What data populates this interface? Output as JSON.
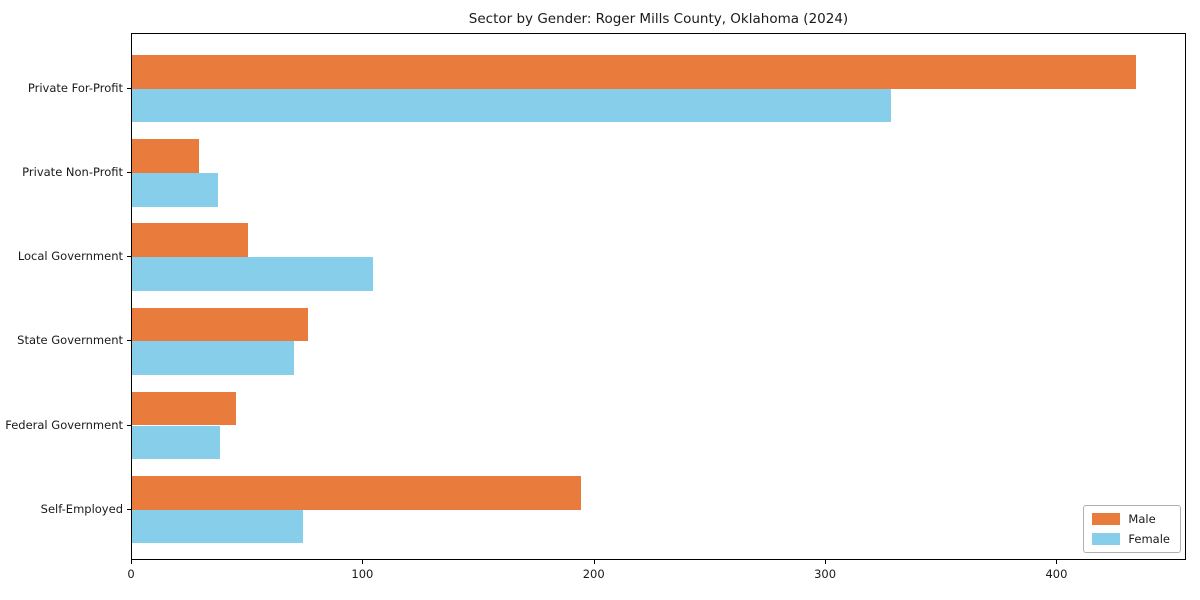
{
  "title": "Sector by Gender: Roger Mills County, Oklahoma (2024)",
  "chart_data": {
    "type": "bar",
    "orientation": "horizontal",
    "title": "Sector by Gender: Roger Mills County, Oklahoma (2024)",
    "categories": [
      "Private For-Profit",
      "Private Non-Profit",
      "Local Government",
      "State Government",
      "Federal Government",
      "Self-Employed"
    ],
    "series": [
      {
        "name": "Male",
        "color": "#e97c3c",
        "values": [
          434,
          29,
          50,
          76,
          45,
          194
        ]
      },
      {
        "name": "Female",
        "color": "#87ceeb",
        "values": [
          328,
          37,
          104,
          70,
          38,
          74
        ]
      }
    ],
    "xlabel": "",
    "ylabel": "",
    "xlim": [
      0,
      456
    ],
    "xticks": [
      0,
      100,
      200,
      300,
      400
    ],
    "grid": false,
    "legend_position": "lower right",
    "axis_color": "#000000",
    "background_color": "#ffffff"
  }
}
